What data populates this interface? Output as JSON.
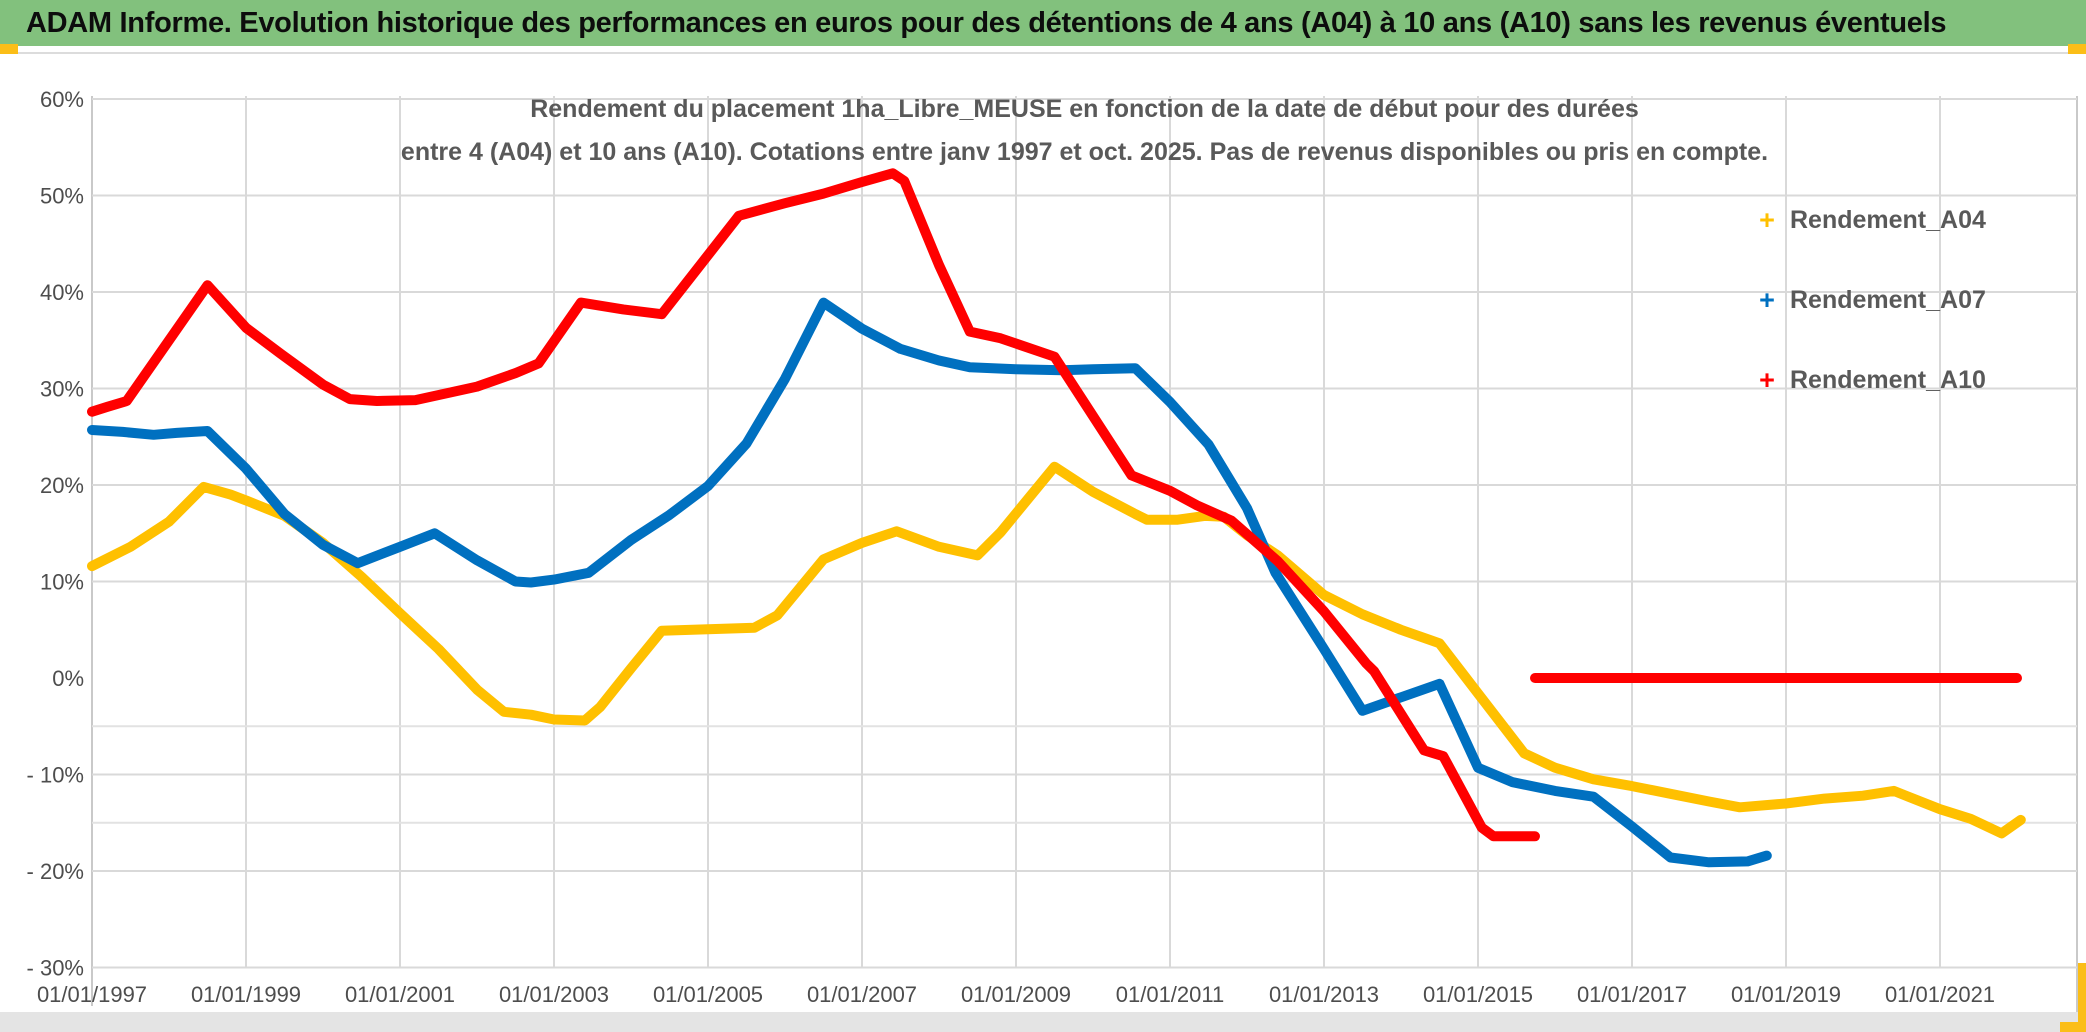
{
  "header": {
    "title": "ADAM Informe. Evolution historique des performances en euros pour des détentions de 4 ans (A04) à 10 ans (A10) sans les revenus éventuels"
  },
  "colors": {
    "header_green": "#82c17d",
    "accent_orange": "#fbbe18",
    "series_a04": "#FFC000",
    "series_a07": "#0070C0",
    "series_a10": "#FF0000",
    "gridline": "#d9d9d9",
    "text_gray": "#595959"
  },
  "chart_data": {
    "type": "line",
    "marker_style": "plus",
    "grid": true,
    "legend_position": "right",
    "title": "Rendement du placement 1ha_Libre_MEUSE en fonction de la date de début pour des durées entre 4 (A04) et 10 ans (A10). Cotations entre janv 1997 et oct. 2025. Pas de revenus disponibles ou pris en compte.",
    "title_line1": "Rendement du placement 1ha_Libre_MEUSE en fonction de la date de début pour des durées",
    "title_line2": "entre 4 (A04) et 10 ans (A10). Cotations entre janv 1997 et oct. 2025. Pas de revenus disponibles ou pris en compte.",
    "xlabel": "",
    "ylabel": "",
    "x_axis": {
      "range_years": [
        1997,
        2022.8
      ],
      "tick_years": [
        1997,
        1999,
        2001,
        2003,
        2005,
        2007,
        2009,
        2011,
        2013,
        2015,
        2017,
        2019,
        2021
      ],
      "ticks": [
        "01/01/1997",
        "01/01/1999",
        "01/01/2001",
        "01/01/2003",
        "01/01/2005",
        "01/01/2007",
        "01/01/2009",
        "01/01/2011",
        "01/01/2013",
        "01/01/2015",
        "01/01/2017",
        "01/01/2019",
        "01/01/2021"
      ]
    },
    "y_axis": {
      "range_percent": [
        -30,
        60
      ],
      "ticks": [
        {
          "label": "60%",
          "value": 60
        },
        {
          "label": "50%",
          "value": 50
        },
        {
          "label": "40%",
          "value": 40
        },
        {
          "label": "30%",
          "value": 30
        },
        {
          "label": "20%",
          "value": 20
        },
        {
          "label": "10%",
          "value": 10
        },
        {
          "label": "0%",
          "value": 0
        },
        {
          "label": "- 10%",
          "value": -10
        },
        {
          "label": "- 20%",
          "value": -20
        },
        {
          "label": "- 30%",
          "value": -30
        }
      ],
      "no_gridline_at": 0,
      "extra_faint_gridlines": [
        -5,
        -15
      ]
    },
    "series": [
      {
        "name": "Rendement_A04",
        "color": "#FFC000",
        "paths": [
          [
            [
              1997.0,
              11.6
            ],
            [
              1997.5,
              13.6
            ],
            [
              1998.0,
              16.2
            ],
            [
              1998.45,
              19.8
            ],
            [
              1998.8,
              19.0
            ],
            [
              1999.0,
              18.4
            ],
            [
              1999.5,
              16.8
            ],
            [
              2000.0,
              14.0
            ],
            [
              2000.5,
              10.5
            ],
            [
              2001.0,
              6.7
            ],
            [
              2001.5,
              3.0
            ],
            [
              2002.0,
              -1.2
            ],
            [
              2002.35,
              -3.5
            ],
            [
              2002.7,
              -3.8
            ],
            [
              2003.0,
              -4.3
            ],
            [
              2003.4,
              -4.4
            ],
            [
              2003.6,
              -3.0
            ],
            [
              2004.0,
              1.0
            ],
            [
              2004.4,
              4.9
            ],
            [
              2004.8,
              5.0
            ],
            [
              2005.2,
              5.1
            ],
            [
              2005.6,
              5.2
            ],
            [
              2005.9,
              6.5
            ],
            [
              2006.5,
              12.3
            ],
            [
              2007.0,
              14.0
            ],
            [
              2007.45,
              15.2
            ],
            [
              2008.0,
              13.6
            ],
            [
              2008.5,
              12.7
            ],
            [
              2008.8,
              15.1
            ],
            [
              2009.5,
              21.9
            ],
            [
              2010.0,
              19.3
            ],
            [
              2010.55,
              17.0
            ],
            [
              2010.7,
              16.4
            ],
            [
              2011.1,
              16.4
            ],
            [
              2011.45,
              16.8
            ],
            [
              2011.7,
              16.7
            ],
            [
              2012.0,
              14.8
            ],
            [
              2012.4,
              12.7
            ],
            [
              2013.0,
              8.6
            ],
            [
              2013.5,
              6.6
            ],
            [
              2014.0,
              5.0
            ],
            [
              2014.5,
              3.6
            ],
            [
              2015.0,
              -1.6
            ],
            [
              2015.6,
              -7.8
            ],
            [
              2016.0,
              -9.3
            ],
            [
              2016.5,
              -10.5
            ],
            [
              2017.0,
              -11.2
            ],
            [
              2017.5,
              -12.0
            ],
            [
              2018.0,
              -12.8
            ],
            [
              2018.4,
              -13.4
            ],
            [
              2019.0,
              -13.0
            ],
            [
              2019.5,
              -12.5
            ],
            [
              2020.0,
              -12.2
            ],
            [
              2020.4,
              -11.7
            ],
            [
              2021.0,
              -13.6
            ],
            [
              2021.4,
              -14.6
            ],
            [
              2021.8,
              -16.1
            ],
            [
              2022.05,
              -14.7
            ]
          ]
        ]
      },
      {
        "name": "Rendement_A07",
        "color": "#0070C0",
        "paths": [
          [
            [
              1997.0,
              25.7
            ],
            [
              1997.4,
              25.5
            ],
            [
              1997.8,
              25.2
            ],
            [
              1998.1,
              25.4
            ],
            [
              1998.5,
              25.6
            ],
            [
              1999.0,
              21.7
            ],
            [
              1999.5,
              17.0
            ],
            [
              2000.0,
              13.8
            ],
            [
              2000.45,
              11.9
            ],
            [
              2001.0,
              13.6
            ],
            [
              2001.45,
              15.0
            ],
            [
              2002.0,
              12.2
            ],
            [
              2002.5,
              10.0
            ],
            [
              2002.7,
              9.9
            ],
            [
              2003.0,
              10.2
            ],
            [
              2003.45,
              10.9
            ],
            [
              2004.0,
              14.3
            ],
            [
              2004.5,
              16.9
            ],
            [
              2005.0,
              19.9
            ],
            [
              2005.5,
              24.3
            ],
            [
              2006.0,
              31.0
            ],
            [
              2006.5,
              38.9
            ],
            [
              2007.0,
              36.2
            ],
            [
              2007.5,
              34.1
            ],
            [
              2008.0,
              32.9
            ],
            [
              2008.4,
              32.2
            ],
            [
              2009.0,
              32.0
            ],
            [
              2009.6,
              31.9
            ],
            [
              2010.0,
              32.0
            ],
            [
              2010.55,
              32.1
            ],
            [
              2011.0,
              28.6
            ],
            [
              2011.5,
              24.2
            ],
            [
              2012.0,
              17.6
            ],
            [
              2012.37,
              10.9
            ],
            [
              2013.0,
              3.0
            ],
            [
              2013.5,
              -3.4
            ],
            [
              2014.0,
              -2.0
            ],
            [
              2014.5,
              -0.6
            ],
            [
              2015.0,
              -9.3
            ],
            [
              2015.45,
              -10.8
            ],
            [
              2016.0,
              -11.7
            ],
            [
              2016.5,
              -12.3
            ],
            [
              2017.0,
              -15.4
            ],
            [
              2017.5,
              -18.6
            ],
            [
              2018.0,
              -19.1
            ],
            [
              2018.5,
              -19.0
            ],
            [
              2018.75,
              -18.4
            ]
          ]
        ]
      },
      {
        "name": "Rendement_A10",
        "color": "#FF0000",
        "paths": [
          [
            [
              1997.0,
              27.6
            ],
            [
              1997.2,
              28.1
            ],
            [
              1997.45,
              28.7
            ],
            [
              1998.5,
              40.7
            ],
            [
              1999.0,
              36.3
            ],
            [
              1999.45,
              33.6
            ],
            [
              2000.0,
              30.4
            ],
            [
              2000.35,
              28.9
            ],
            [
              2000.7,
              28.7
            ],
            [
              2001.2,
              28.8
            ],
            [
              2002.0,
              30.2
            ],
            [
              2002.5,
              31.6
            ],
            [
              2002.8,
              32.6
            ],
            [
              2003.35,
              38.9
            ],
            [
              2003.9,
              38.2
            ],
            [
              2004.4,
              37.7
            ],
            [
              2005.4,
              47.9
            ],
            [
              2006.0,
              49.2
            ],
            [
              2006.5,
              50.2
            ],
            [
              2007.0,
              51.4
            ],
            [
              2007.4,
              52.3
            ],
            [
              2007.55,
              51.5
            ],
            [
              2008.0,
              42.8
            ],
            [
              2008.4,
              35.9
            ],
            [
              2008.8,
              35.2
            ],
            [
              2009.5,
              33.3
            ],
            [
              2010.5,
              21.0
            ],
            [
              2011.0,
              19.4
            ],
            [
              2011.35,
              17.9
            ],
            [
              2011.8,
              16.3
            ],
            [
              2012.4,
              12.1
            ],
            [
              2013.0,
              6.9
            ],
            [
              2013.55,
              1.5
            ],
            [
              2013.65,
              0.7
            ],
            [
              2014.3,
              -7.5
            ],
            [
              2014.55,
              -8.1
            ],
            [
              2015.05,
              -15.5
            ],
            [
              2015.2,
              -16.4
            ],
            [
              2015.74,
              -16.4
            ]
          ],
          [
            [
              2015.74,
              0.0
            ],
            [
              2022.0,
              0.0
            ]
          ]
        ]
      }
    ]
  }
}
